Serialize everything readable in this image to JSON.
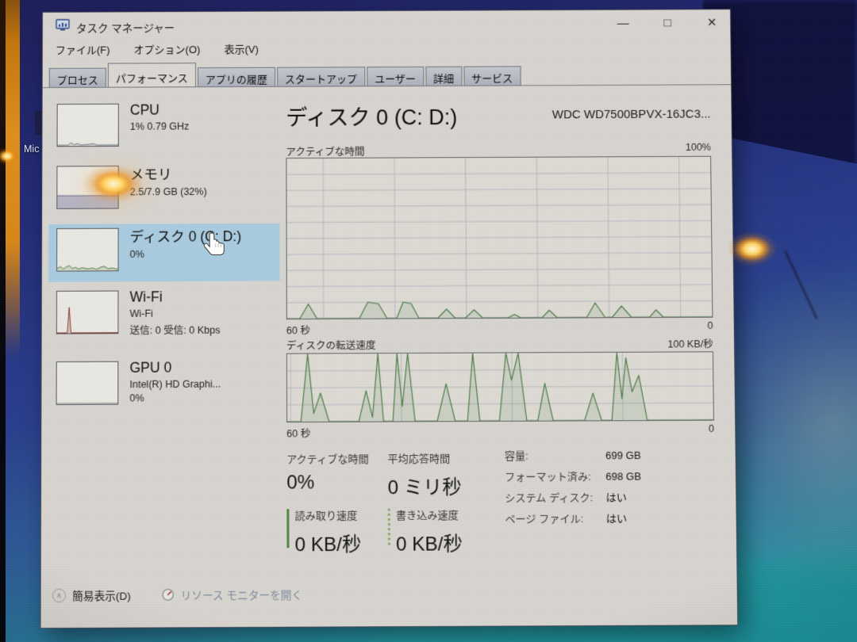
{
  "colors": {
    "accent_green": "#4b7f44",
    "selected_blue": "#a7cde2",
    "window_bg": "#d8d5d0",
    "desktop_navy": "#242d7c",
    "desktop_teal": "#1f98a2",
    "strip_orange": "#d9891b",
    "grid_gray": "#b4b7be"
  },
  "window": {
    "title": "タスク マネージャー",
    "controls": {
      "minimize": "—",
      "maximize": "□",
      "close": "✕"
    }
  },
  "menu": {
    "items": [
      {
        "label": "ファイル(F)"
      },
      {
        "label": "オプション(O)"
      },
      {
        "label": "表示(V)"
      }
    ]
  },
  "tabs": [
    {
      "label": "プロセス",
      "active": false
    },
    {
      "label": "パフォーマンス",
      "active": true
    },
    {
      "label": "アプリの履歴",
      "active": false
    },
    {
      "label": "スタートアップ",
      "active": false
    },
    {
      "label": "ユーザー",
      "active": false
    },
    {
      "label": "詳細",
      "active": false
    },
    {
      "label": "サービス",
      "active": false
    }
  ],
  "sidebar": {
    "items": [
      {
        "id": "cpu",
        "title": "CPU",
        "lines": [
          "1% 0.79 GHz"
        ],
        "selected": false,
        "spark": {
          "kind": "peaks",
          "color": "#6e7a7e",
          "points": [
            [
              0,
              0.02
            ],
            [
              0.18,
              0.02
            ],
            [
              0.22,
              0.08
            ],
            [
              0.27,
              0.03
            ],
            [
              0.33,
              0.06
            ],
            [
              0.38,
              0.02
            ],
            [
              0.6,
              0.05
            ],
            [
              0.65,
              0.02
            ],
            [
              1,
              0.02
            ]
          ]
        }
      },
      {
        "id": "memory",
        "title": "メモリ",
        "lines": [
          "2.5/7.9 GB (32%)"
        ],
        "selected": false,
        "spark": {
          "kind": "band",
          "level": 0.3,
          "fill": "#b7b4c6",
          "line": "#817e9b"
        }
      },
      {
        "id": "disk0",
        "title": "ディスク 0 (C: D:)",
        "lines": [
          "0%"
        ],
        "selected": true,
        "spark": {
          "kind": "peaks",
          "color": "#4b7f44",
          "points": [
            [
              0,
              0.05
            ],
            [
              0.05,
              0.1
            ],
            [
              0.1,
              0.04
            ],
            [
              0.15,
              0.09
            ],
            [
              0.2,
              0.12
            ],
            [
              0.25,
              0.05
            ],
            [
              0.3,
              0.08
            ],
            [
              0.35,
              0.04
            ],
            [
              0.42,
              0.07
            ],
            [
              0.5,
              0.04
            ],
            [
              0.58,
              0.06
            ],
            [
              0.65,
              0.03
            ],
            [
              0.72,
              0.08
            ],
            [
              0.78,
              0.1
            ],
            [
              0.84,
              0.04
            ],
            [
              0.9,
              0.06
            ],
            [
              1,
              0.03
            ]
          ]
        }
      },
      {
        "id": "wifi",
        "title": "Wi-Fi",
        "lines": [
          "Wi-Fi",
          "送信: 0 受信: 0 Kbps"
        ],
        "selected": false,
        "spark": {
          "kind": "peaks",
          "color": "#8b3a2e",
          "points": [
            [
              0,
              0.01
            ],
            [
              0.17,
              0.01
            ],
            [
              0.2,
              0.62
            ],
            [
              0.23,
              0.01
            ],
            [
              1,
              0.01
            ]
          ]
        }
      },
      {
        "id": "gpu",
        "title": "GPU 0",
        "lines": [
          "Intel(R) HD Graphi...",
          "0%"
        ],
        "selected": false,
        "spark": {
          "kind": "peaks",
          "color": "#9a9aa6",
          "points": [
            [
              0,
              0.02
            ],
            [
              1,
              0.02
            ]
          ]
        }
      }
    ]
  },
  "main": {
    "title": "ディスク 0 (C: D:)",
    "subtitle": "WDC WD7500BPVX-16JC3...",
    "stats": [
      {
        "label": "アクティブな時間",
        "value": "0%",
        "bar": "none"
      },
      {
        "label": "平均応答時間",
        "value": "0 ミリ秒",
        "bar": "none"
      },
      {
        "label": "読み取り速度",
        "value": "0 KB/秒",
        "bar": "solid"
      },
      {
        "label": "書き込み速度",
        "value": "0 KB/秒",
        "bar": "dotted"
      }
    ],
    "details": [
      {
        "label": "容量:",
        "value": "699 GB"
      },
      {
        "label": "フォーマット済み:",
        "value": "698 GB"
      },
      {
        "label": "システム ディスク:",
        "value": "はい"
      },
      {
        "label": "ページ ファイル:",
        "value": "はい"
      }
    ]
  },
  "footer": {
    "simple_view": "簡易表示(D)",
    "resource_monitor": "リソース モニターを開く"
  },
  "desktop": {
    "icon_label": "Mic"
  },
  "chart_data": [
    {
      "type": "area",
      "title": "アクティブな時間",
      "max_label": "100%",
      "x_left": "60 秒",
      "x_right": "0",
      "ylim": [
        0,
        100
      ],
      "unit": "%",
      "grid": {
        "v_offset": 8.6,
        "v_step": 16.8,
        "h_step": 10
      },
      "points": [
        [
          0,
          0
        ],
        [
          0.03,
          0
        ],
        [
          0.05,
          9
        ],
        [
          0.07,
          0
        ],
        [
          0.17,
          0
        ],
        [
          0.19,
          10
        ],
        [
          0.215,
          9
        ],
        [
          0.235,
          0
        ],
        [
          0.258,
          0
        ],
        [
          0.273,
          10
        ],
        [
          0.292,
          9
        ],
        [
          0.31,
          0
        ],
        [
          0.355,
          0
        ],
        [
          0.375,
          5.5
        ],
        [
          0.395,
          0
        ],
        [
          0.42,
          0
        ],
        [
          0.44,
          5
        ],
        [
          0.46,
          0
        ],
        [
          0.52,
          0
        ],
        [
          0.535,
          2
        ],
        [
          0.55,
          0
        ],
        [
          0.6,
          0
        ],
        [
          0.617,
          4.5
        ],
        [
          0.635,
          0
        ],
        [
          0.705,
          0
        ],
        [
          0.725,
          9
        ],
        [
          0.748,
          0
        ],
        [
          0.765,
          0
        ],
        [
          0.787,
          7
        ],
        [
          0.81,
          0
        ],
        [
          0.853,
          0
        ],
        [
          0.868,
          4.5
        ],
        [
          0.885,
          0
        ],
        [
          1,
          0
        ]
      ]
    },
    {
      "type": "area",
      "title": "ディスクの転送速度",
      "max_label": "100 KB/秒",
      "x_left": "60 秒",
      "x_right": "0",
      "ylim": [
        0,
        100
      ],
      "unit": "KB/s",
      "grid": {
        "v_offset": 0.8,
        "v_step": 26,
        "h_step": 25
      },
      "points": [
        [
          0,
          0
        ],
        [
          0.032,
          0
        ],
        [
          0.048,
          100
        ],
        [
          0.062,
          12
        ],
        [
          0.078,
          42
        ],
        [
          0.098,
          0
        ],
        [
          0.168,
          0
        ],
        [
          0.185,
          45
        ],
        [
          0.2,
          6
        ],
        [
          0.213,
          100
        ],
        [
          0.226,
          0
        ],
        [
          0.248,
          0
        ],
        [
          0.258,
          100
        ],
        [
          0.27,
          22
        ],
        [
          0.283,
          100
        ],
        [
          0.3,
          0
        ],
        [
          0.352,
          0
        ],
        [
          0.373,
          55
        ],
        [
          0.394,
          0
        ],
        [
          0.423,
          0
        ],
        [
          0.436,
          100
        ],
        [
          0.452,
          0
        ],
        [
          0.498,
          0
        ],
        [
          0.514,
          100
        ],
        [
          0.527,
          60
        ],
        [
          0.543,
          100
        ],
        [
          0.562,
          0
        ],
        [
          0.588,
          0
        ],
        [
          0.605,
          55
        ],
        [
          0.624,
          0
        ],
        [
          0.698,
          0
        ],
        [
          0.718,
          40
        ],
        [
          0.738,
          0
        ],
        [
          0.762,
          0
        ],
        [
          0.775,
          100
        ],
        [
          0.786,
          32
        ],
        [
          0.796,
          92
        ],
        [
          0.81,
          42
        ],
        [
          0.826,
          66
        ],
        [
          0.845,
          0
        ],
        [
          1,
          0
        ]
      ]
    }
  ]
}
